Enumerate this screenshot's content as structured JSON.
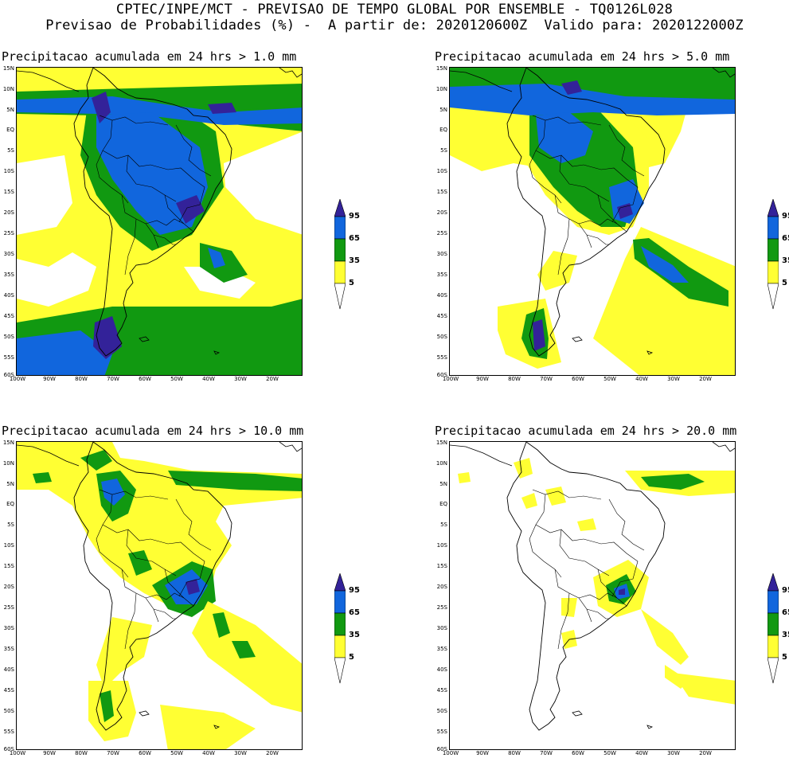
{
  "header": {
    "line1": "CPTEC/INPE/MCT - PREVISAO DE TEMPO GLOBAL POR ENSEMBLE - TQ0126L028",
    "line2": "Previsao de Probabilidades (%) -  A partir de: 2020120600Z  Valido para: 2020122000Z"
  },
  "axes": {
    "lat_labels": [
      "15N",
      "10N",
      "5N",
      "EQ",
      "5S",
      "10S",
      "15S",
      "20S",
      "25S",
      "30S",
      "35S",
      "40S",
      "45S",
      "50S",
      "55S",
      "60S"
    ],
    "lon_labels": [
      "100W",
      "90W",
      "80W",
      "70W",
      "60W",
      "50W",
      "40W",
      "30W",
      "20W"
    ]
  },
  "colorbar": {
    "levels": [
      "95",
      "65",
      "35",
      "5"
    ],
    "colors": {
      "c5": "#ffff33",
      "c35": "#119911",
      "c65": "#1166dd",
      "c95": "#332299"
    }
  },
  "panels": [
    {
      "title": "Precipitacao acumulada em 24 hrs > 1.0 mm"
    },
    {
      "title": "Precipitacao acumulada em 24 hrs > 5.0 mm"
    },
    {
      "title": "Precipitacao acumulada em 24 hrs > 10.0 mm"
    },
    {
      "title": "Precipitacao acumulada em 24 hrs > 20.0 mm"
    }
  ]
}
